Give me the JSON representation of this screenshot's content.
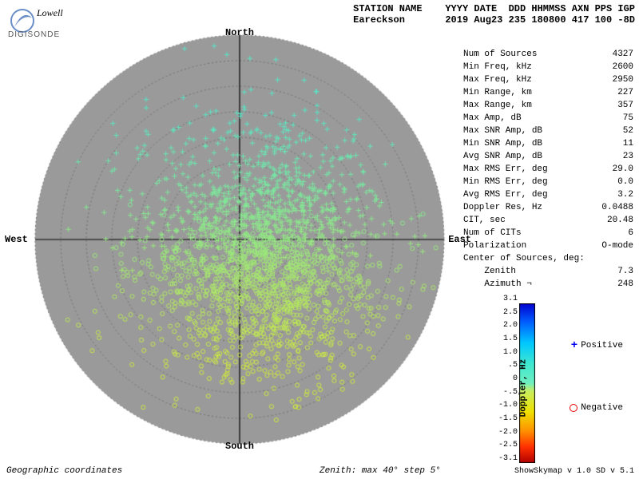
{
  "logo": {
    "line1": "Lowell",
    "line2": "DIGISONDE",
    "swirl": "#6a8fc7"
  },
  "header": {
    "labels": "STATION NAME    YYYY DATE  DDD HHMMSS AXN PPS IGP",
    "values": "Eareckson       2019 Aug23 235 180800 417 100 -8D"
  },
  "stats": [
    {
      "k": "Num of Sources",
      "v": "4327"
    },
    {
      "k": "Min Freq, kHz",
      "v": "2600"
    },
    {
      "k": "Max Freq, kHz",
      "v": "2950"
    },
    {
      "k": "Min Range, km",
      "v": "227"
    },
    {
      "k": "Max Range, km",
      "v": "357"
    },
    {
      "k": "Max Amp, dB",
      "v": "75"
    },
    {
      "k": "Max SNR Amp, dB",
      "v": "52"
    },
    {
      "k": "Min SNR Amp, dB",
      "v": "11"
    },
    {
      "k": "Avg SNR Amp, dB",
      "v": "23"
    },
    {
      "k": "Max RMS Err, deg",
      "v": "29.0"
    },
    {
      "k": "Min RMS Err, deg",
      "v": "0.0"
    },
    {
      "k": "Avg RMS Err, deg",
      "v": "3.2"
    },
    {
      "k": "Doppler Res, Hz",
      "v": "0.0488"
    },
    {
      "k": "CIT, sec",
      "v": "20.48"
    },
    {
      "k": "Num of CITs",
      "v": "6"
    },
    {
      "k": "Polarization",
      "v": "O-mode"
    },
    {
      "k": "Center of Sources, deg:",
      "v": ""
    },
    {
      "k": "    Zenith",
      "v": "7.3"
    },
    {
      "k": "    Azimuth ¬",
      "v": "248"
    }
  ],
  "cardinals": {
    "N": "North",
    "S": "South",
    "E": "East",
    "W": "West"
  },
  "polar": {
    "bg": "#9a9a9a",
    "rings": 8,
    "ring_dash": "2,3",
    "ring_color": "#707070",
    "axis_color": "#000000",
    "size": 520,
    "n_points": 2200,
    "cluster_center": [
      0.12,
      0.08
    ],
    "cluster_sigma": 0.28,
    "doppler_top_color": [
      0.35,
      0.9,
      0.78
    ],
    "doppler_bot_color": [
      0.82,
      0.92,
      0.25
    ],
    "marker_size": 3.2
  },
  "colorbar": {
    "min": -3.1,
    "max": 3.1,
    "ticks": [
      "3.1",
      "2.5",
      "2.0",
      "1.5",
      "1.0",
      ".5",
      "0",
      "-.5",
      "-1.0",
      "-1.5",
      "-2.0",
      "-2.5",
      "-3.1"
    ],
    "label": "Doppler, Hz",
    "stops": [
      [
        0.0,
        "#0000d0"
      ],
      [
        0.12,
        "#0060ff"
      ],
      [
        0.25,
        "#00c8ff"
      ],
      [
        0.38,
        "#40e8d0"
      ],
      [
        0.5,
        "#70efc0"
      ],
      [
        0.55,
        "#c8ef60"
      ],
      [
        0.68,
        "#f0e000"
      ],
      [
        0.8,
        "#ff9000"
      ],
      [
        0.9,
        "#ff3000"
      ],
      [
        1.0,
        "#b00000"
      ]
    ]
  },
  "legend": {
    "pos": "Positive",
    "neg": "Negative"
  },
  "footer": {
    "left": "Geographic coordinates",
    "mid": "Zenith: max 40°  step 5°",
    "right": "ShowSkymap v 1.0  SD v 5.1"
  }
}
